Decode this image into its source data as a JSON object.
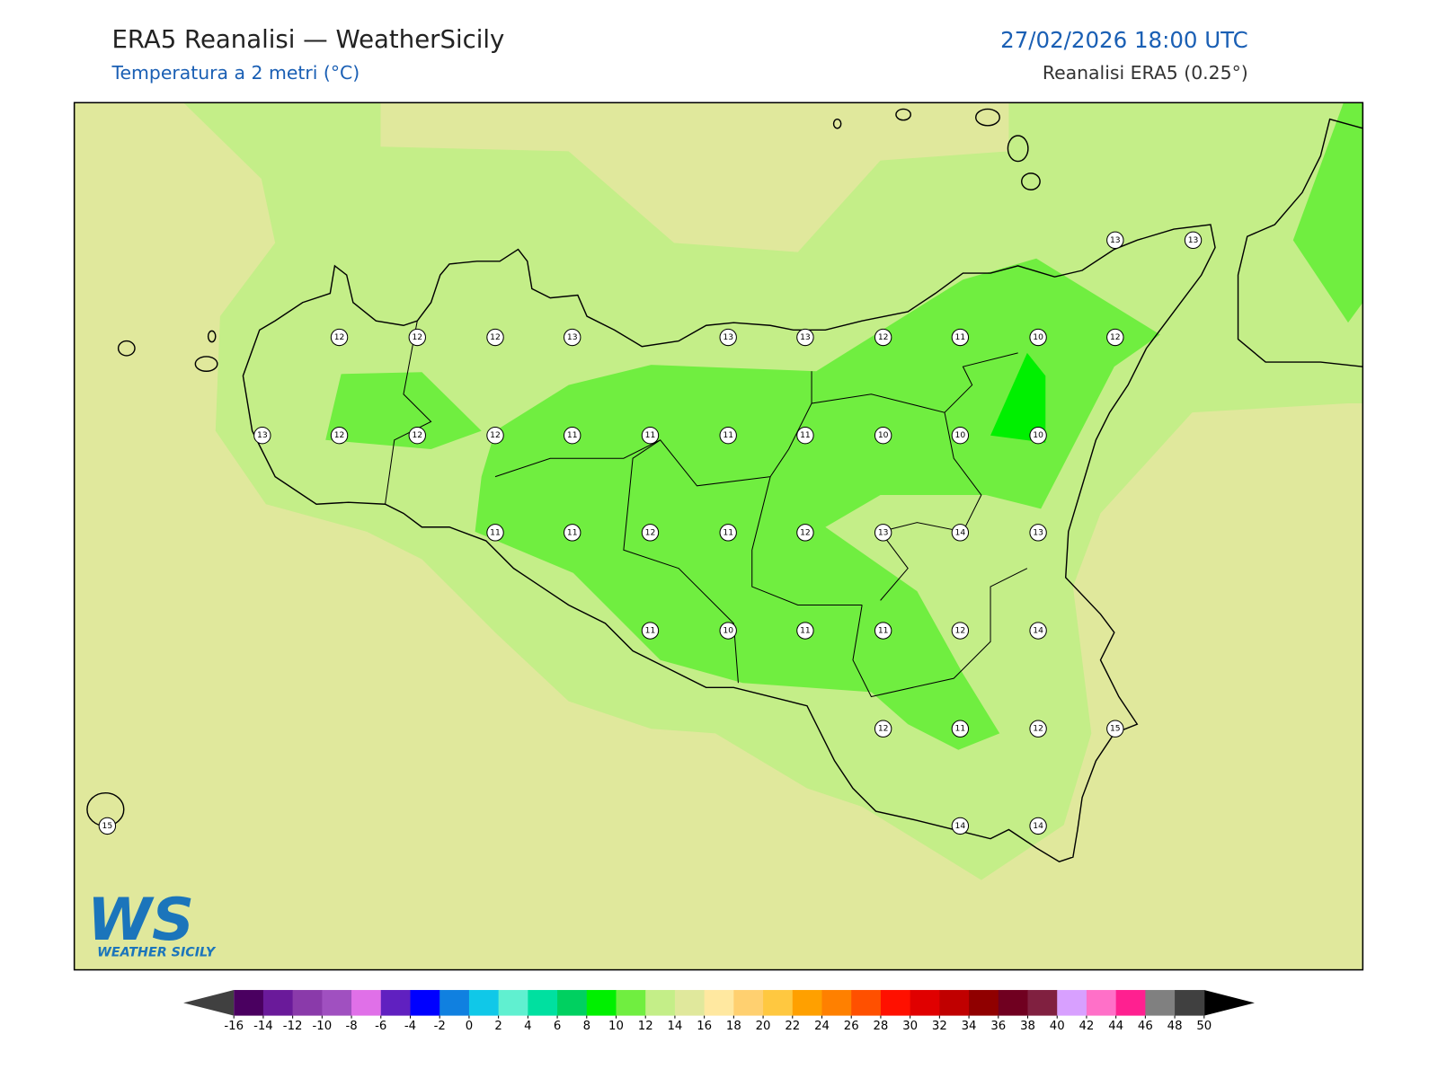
{
  "header": {
    "title": "ERA5 Reanalisi — WeatherSicily",
    "subtitle": "Temperatura a 2 metri (°C)",
    "datetime": "27/02/2026 18:00 UTC",
    "source": "Reanalisi ERA5 (0.25°)"
  },
  "map": {
    "stations": {
      "values": [
        13,
        13,
        12,
        12,
        12,
        13,
        13,
        13,
        12,
        11,
        10,
        12,
        13,
        12,
        12,
        12,
        11,
        11,
        11,
        11,
        10,
        10,
        10,
        11,
        11,
        12,
        11,
        12,
        13,
        14,
        13,
        11,
        10,
        11,
        11,
        12,
        14,
        12,
        11,
        12,
        15,
        15,
        14,
        14
      ]
    }
  },
  "logo": {
    "mark": "WS",
    "text": "WEATHER SICILY"
  },
  "colorbar": {
    "ticks": [
      -16,
      -14,
      -12,
      -10,
      -8,
      -6,
      -4,
      -2,
      0,
      2,
      4,
      6,
      8,
      10,
      12,
      14,
      16,
      18,
      20,
      22,
      24,
      26,
      28,
      30,
      32,
      34,
      36,
      38,
      40,
      42,
      44,
      46,
      48,
      50
    ],
    "colors": [
      "#4a0060",
      "#6a1a9a",
      "#8a3aaa",
      "#a050c0",
      "#e070e8",
      "#6020c0",
      "#0000ff",
      "#1080e0",
      "#10c8e8",
      "#60f0d0",
      "#00e0a0",
      "#00d060",
      "#00f000",
      "#70ee40",
      "#c4ee88",
      "#e0e89c",
      "#ffe8a0",
      "#ffd070",
      "#ffc840",
      "#ffa000",
      "#ff8000",
      "#ff5000",
      "#ff1000",
      "#e00000",
      "#c00000",
      "#900000",
      "#700020",
      "#802040",
      "#d8a0ff",
      "#ff70c8",
      "#ff2090",
      "#808080",
      "#404040"
    ],
    "under": "#404040",
    "over": "#000000"
  }
}
